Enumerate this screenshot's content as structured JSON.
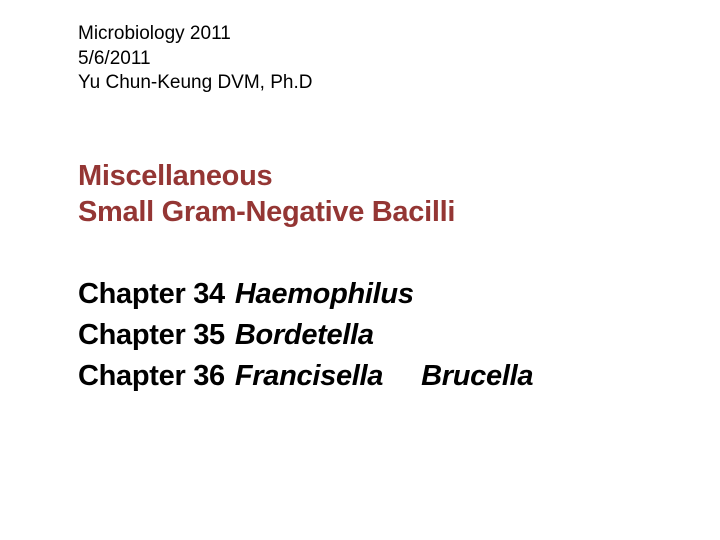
{
  "header": {
    "course": "Microbiology 2011",
    "date": "5/6/2011",
    "author": "Yu Chun-Keung DVM, Ph.D"
  },
  "title": {
    "line1": "Miscellaneous",
    "line2": "Small Gram-Negative Bacilli"
  },
  "chapters": [
    {
      "label": "Chapter 34",
      "genera": [
        "Haemophilus"
      ]
    },
    {
      "label": "Chapter 35",
      "genera": [
        "Bordetella"
      ]
    },
    {
      "label": "Chapter 36",
      "genera": [
        "Francisella",
        "Brucella"
      ]
    }
  ],
  "colors": {
    "title_color": "#943634",
    "text_color": "#000000",
    "background": "#ffffff"
  },
  "typography": {
    "header_fontsize": 19,
    "title_fontsize": 29,
    "chapter_fontsize": 29,
    "font_family": "Arial"
  }
}
